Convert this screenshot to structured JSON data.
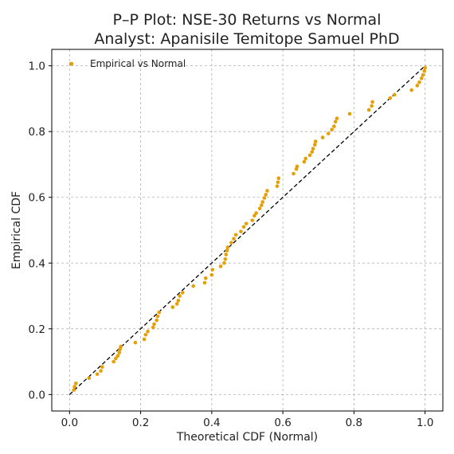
{
  "chart_data": {
    "type": "scatter",
    "title": "P–P Plot: NSE-30 Returns vs Normal",
    "subtitle": "Analyst: Apanisile Temitope Samuel PhD",
    "xlabel": "Theoretical CDF (Normal)",
    "ylabel": "Empirical CDF",
    "xlim": [
      -0.05,
      1.05
    ],
    "ylim": [
      -0.05,
      1.05
    ],
    "xticks": [
      0.0,
      0.2,
      0.4,
      0.6,
      0.8,
      1.0
    ],
    "yticks": [
      0.0,
      0.2,
      0.4,
      0.6,
      0.8,
      1.0
    ],
    "x_tick_labels": [
      "0.0",
      "0.2",
      "0.4",
      "0.6",
      "0.8",
      "1.0"
    ],
    "y_tick_labels": [
      "0.0",
      "0.2",
      "0.4",
      "0.6",
      "0.8",
      "1.0"
    ],
    "grid": true,
    "legend_position": "top-left",
    "series": [
      {
        "name": "Empirical vs Normal",
        "color": "#E69F00",
        "points": [
          [
            0.012,
            0.014
          ],
          [
            0.014,
            0.024
          ],
          [
            0.018,
            0.034
          ],
          [
            0.055,
            0.05
          ],
          [
            0.078,
            0.062
          ],
          [
            0.088,
            0.072
          ],
          [
            0.092,
            0.084
          ],
          [
            0.124,
            0.1
          ],
          [
            0.13,
            0.11
          ],
          [
            0.136,
            0.118
          ],
          [
            0.14,
            0.128
          ],
          [
            0.142,
            0.138
          ],
          [
            0.144,
            0.146
          ],
          [
            0.185,
            0.158
          ],
          [
            0.21,
            0.168
          ],
          [
            0.214,
            0.182
          ],
          [
            0.22,
            0.192
          ],
          [
            0.235,
            0.204
          ],
          [
            0.238,
            0.214
          ],
          [
            0.245,
            0.226
          ],
          [
            0.248,
            0.238
          ],
          [
            0.252,
            0.25
          ],
          [
            0.29,
            0.266
          ],
          [
            0.302,
            0.276
          ],
          [
            0.306,
            0.286
          ],
          [
            0.31,
            0.3
          ],
          [
            0.318,
            0.31
          ],
          [
            0.348,
            0.33
          ],
          [
            0.38,
            0.34
          ],
          [
            0.383,
            0.354
          ],
          [
            0.4,
            0.364
          ],
          [
            0.402,
            0.38
          ],
          [
            0.425,
            0.39
          ],
          [
            0.435,
            0.4
          ],
          [
            0.438,
            0.412
          ],
          [
            0.44,
            0.426
          ],
          [
            0.443,
            0.438
          ],
          [
            0.445,
            0.448
          ],
          [
            0.455,
            0.462
          ],
          [
            0.462,
            0.474
          ],
          [
            0.468,
            0.486
          ],
          [
            0.482,
            0.496
          ],
          [
            0.49,
            0.51
          ],
          [
            0.497,
            0.52
          ],
          [
            0.514,
            0.53
          ],
          [
            0.52,
            0.544
          ],
          [
            0.525,
            0.552
          ],
          [
            0.535,
            0.566
          ],
          [
            0.54,
            0.576
          ],
          [
            0.543,
            0.586
          ],
          [
            0.548,
            0.598
          ],
          [
            0.552,
            0.608
          ],
          [
            0.556,
            0.62
          ],
          [
            0.584,
            0.634
          ],
          [
            0.586,
            0.646
          ],
          [
            0.588,
            0.658
          ],
          [
            0.63,
            0.672
          ],
          [
            0.638,
            0.686
          ],
          [
            0.64,
            0.694
          ],
          [
            0.66,
            0.708
          ],
          [
            0.664,
            0.718
          ],
          [
            0.676,
            0.728
          ],
          [
            0.682,
            0.738
          ],
          [
            0.685,
            0.748
          ],
          [
            0.69,
            0.76
          ],
          [
            0.692,
            0.77
          ],
          [
            0.712,
            0.782
          ],
          [
            0.728,
            0.794
          ],
          [
            0.738,
            0.806
          ],
          [
            0.744,
            0.816
          ],
          [
            0.748,
            0.83
          ],
          [
            0.752,
            0.84
          ],
          [
            0.788,
            0.854
          ],
          [
            0.842,
            0.866
          ],
          [
            0.85,
            0.878
          ],
          [
            0.852,
            0.89
          ],
          [
            0.902,
            0.902
          ],
          [
            0.914,
            0.912
          ],
          [
            0.962,
            0.926
          ],
          [
            0.978,
            0.94
          ],
          [
            0.984,
            0.95
          ],
          [
            0.99,
            0.962
          ],
          [
            0.994,
            0.972
          ],
          [
            0.998,
            0.984
          ],
          [
            1.0,
            0.994
          ],
          [
            0.004,
            1.006
          ]
        ]
      }
    ],
    "reference_line": {
      "x": [
        0.0,
        1.0
      ],
      "y": [
        0.0,
        1.0
      ],
      "style": "dashed",
      "color": "#000000"
    },
    "legend": {
      "entries": [
        "Empirical vs Normal"
      ]
    }
  }
}
